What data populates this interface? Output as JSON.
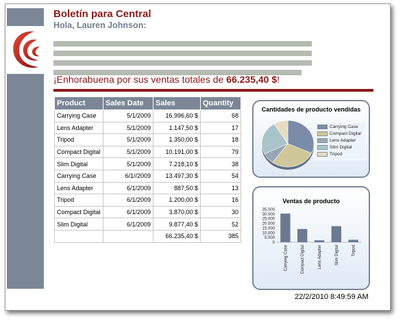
{
  "header": {
    "title": "Boletín para Central",
    "greeting": "Hola, Lauren Johnson:"
  },
  "congrats": {
    "text": "¡Enhorabuena por sus ventas totales de ",
    "amount": "66.235,40 $",
    "suffix": "!"
  },
  "table": {
    "columns": [
      "Product",
      "Sales Date",
      "Sales",
      "Quantity"
    ],
    "rows": [
      [
        "Carrying Case",
        "5/1/2009",
        "16.996,60 $",
        "68"
      ],
      [
        "Lens Adapter",
        "5/1/2009",
        "1.147,50 $",
        "17"
      ],
      [
        "Tripod",
        "5/1/2009",
        "1.350,00 $",
        "18"
      ],
      [
        "Compact Digital",
        "5/1/2009",
        "10.191,00 $",
        "79"
      ],
      [
        "Slim Digital",
        "5/1/2009",
        "7.218,10 $",
        "38"
      ],
      [
        "Carrying Case",
        "6/1//2009",
        "13.497,30 $",
        "54"
      ],
      [
        "Lens Adapter",
        "6/1/2009",
        "887,50 $",
        "13"
      ],
      [
        "Tripod",
        "6/1/2009",
        "1.200,00 $",
        "16"
      ],
      [
        "Compact Digital",
        "6/1/2009",
        "3.870,00 $",
        "30"
      ],
      [
        "Slim Digital",
        "6/1/2009",
        "9.877,40 $",
        "52"
      ]
    ],
    "totals": [
      "",
      "",
      "66.235,40 $",
      "385"
    ]
  },
  "pie_chart": {
    "title": "Cantidades de producto vendidas",
    "legend": [
      {
        "label": "Carrying Case",
        "color": "#7b8ca8"
      },
      {
        "label": "Compact Digital",
        "color": "#cfc79a"
      },
      {
        "label": "Lens Adapter",
        "color": "#9aa6b8"
      },
      {
        "label": "Slim Digital",
        "color": "#a9c4c8"
      },
      {
        "label": "Tripod",
        "color": "#e6dcc2"
      }
    ]
  },
  "chart_data": {
    "type": "bar",
    "title": "Ventas de producto",
    "categories": [
      "Carrying Case",
      "Compact Digital",
      "Lens Adapter",
      "Slim Digital",
      "Tripod"
    ],
    "values": [
      30494,
      14061,
      2035,
      17095,
      2550
    ],
    "yticks": [
      "35.000",
      "30.000",
      "25.000",
      "20.000",
      "15.000",
      "10.000",
      "5.000",
      "0"
    ],
    "ylim": [
      0,
      35000
    ],
    "bar_color": "#6b7a90"
  },
  "footer": {
    "timestamp": "22/2/2010 8:49:59 AM"
  }
}
